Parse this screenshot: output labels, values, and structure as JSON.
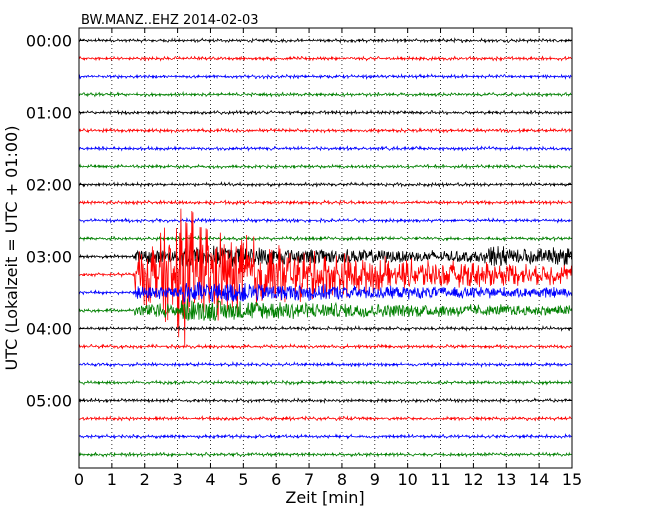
{
  "chart_data": {
    "type": "line",
    "title": "BW.MANZ..EHZ 2014-02-03",
    "xlabel": "Zeit  [min]",
    "ylabel": "UTC (Lokalzeit = UTC + 01:00)",
    "xlim": [
      0,
      15
    ],
    "x_ticks": [
      "0",
      "1",
      "2",
      "3",
      "4",
      "5",
      "6",
      "7",
      "8",
      "9",
      "10",
      "11",
      "12",
      "13",
      "14",
      "15"
    ],
    "y_tick_labels": [
      "00:00",
      "01:00",
      "02:00",
      "03:00",
      "04:00",
      "05:00"
    ],
    "y_tick_rows": [
      0,
      4,
      8,
      12,
      16,
      20
    ],
    "grid": "vertical dotted",
    "row_count": 24,
    "row_minutes": 15,
    "row_colors": [
      "#000000",
      "#ff0000",
      "#0000ff",
      "#008000"
    ],
    "noise_amplitude": 1.6,
    "event": {
      "main_row": 13,
      "start_min": 1.7,
      "peak_min": 3.1,
      "decay_to_min": 15,
      "coda_rows": [
        12,
        14,
        15
      ],
      "late_noise_row": 12,
      "late_noise_start_min": 12.2
    }
  }
}
